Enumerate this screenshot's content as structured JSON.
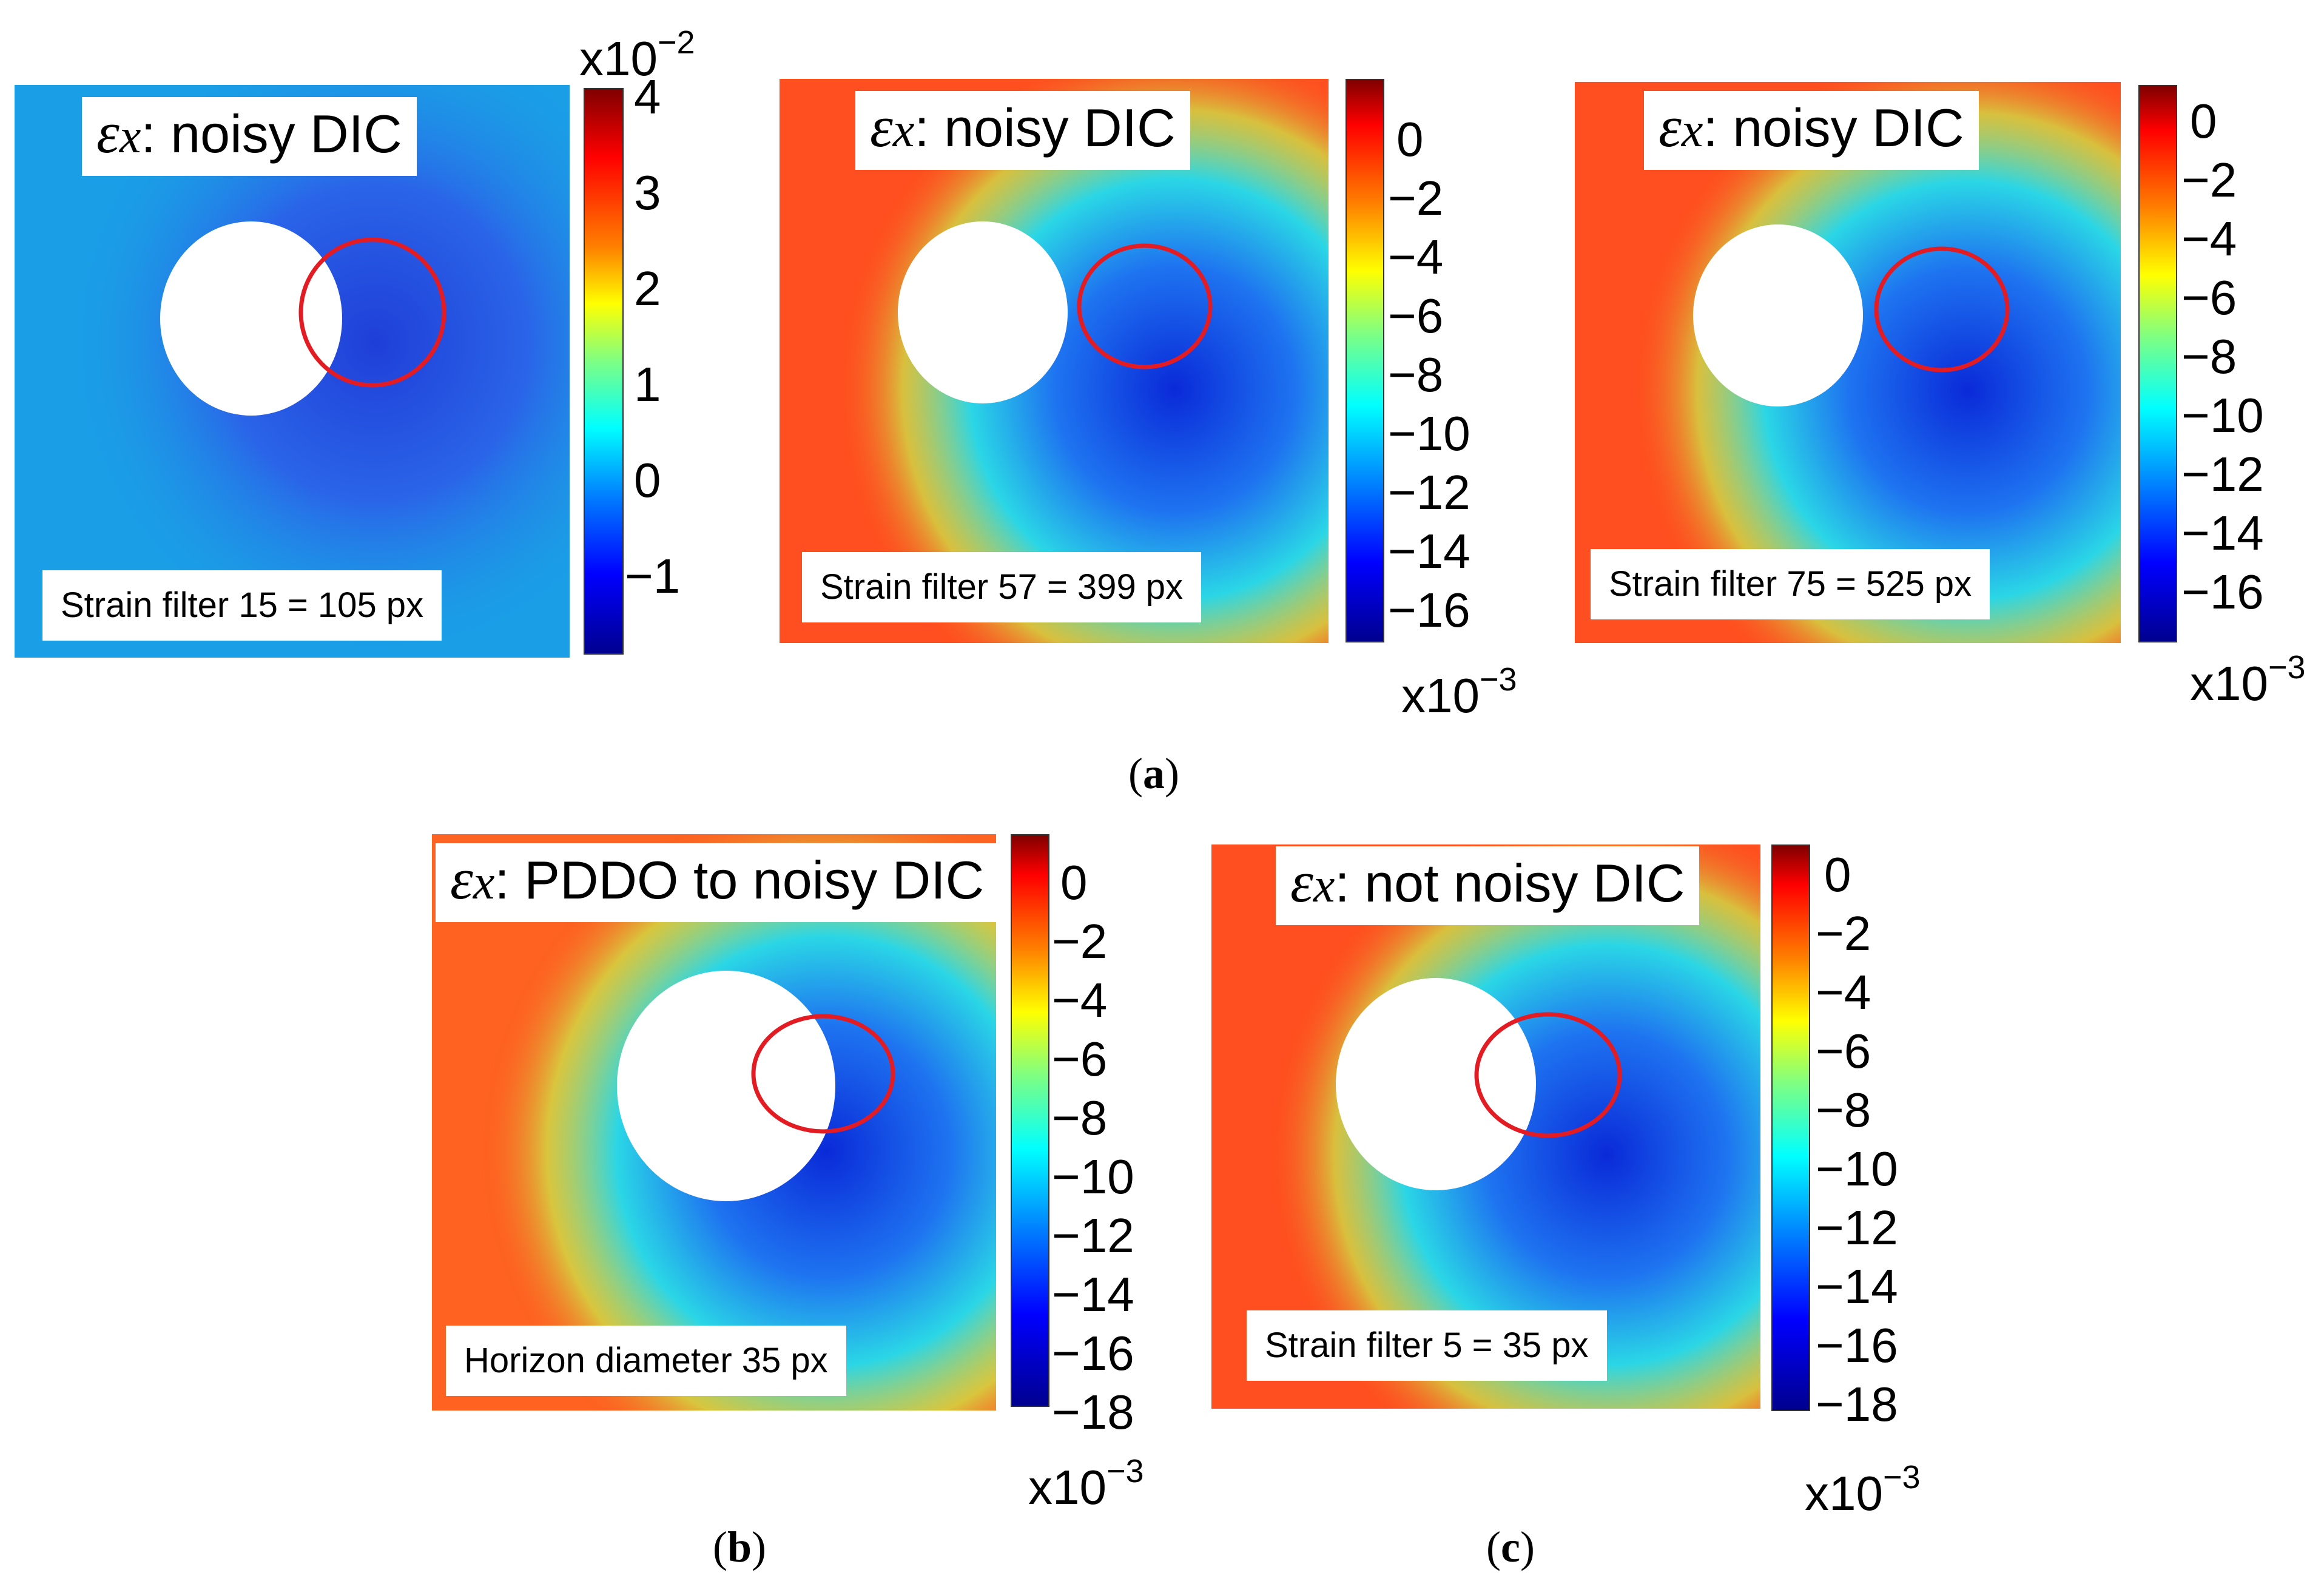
{
  "figure": {
    "subfigure_labels": [
      {
        "open": "(",
        "letter": "a",
        "close": ")"
      },
      {
        "open": "(",
        "letter": "b",
        "close": ")"
      },
      {
        "open": "(",
        "letter": "c",
        "close": ")"
      }
    ],
    "panels": [
      {
        "title_symbol": "εx",
        "title_text": ": noisy DIC",
        "label": "Strain filter 15 = 105 px",
        "colorbar": {
          "ticks": [
            "4",
            "3",
            "2",
            "1",
            "0",
            "−1"
          ],
          "multiplier_base": "x10",
          "multiplier_exp": "−2",
          "multiplier_position": "top",
          "range": [
            -1.8,
            4.2
          ]
        },
        "map_style": "blue"
      },
      {
        "title_symbol": "εx",
        "title_text": ": noisy DIC",
        "label": "Strain filter 57 = 399 px",
        "colorbar": {
          "ticks": [
            "0",
            "−2",
            "−4",
            "−6",
            "−8",
            "−10",
            "−12",
            "−14",
            "−16"
          ],
          "multiplier_base": "x10",
          "multiplier_exp": "−3",
          "multiplier_position": "bottom",
          "range": [
            -17,
            1.3
          ]
        },
        "map_style": "strain"
      },
      {
        "title_symbol": "εx",
        "title_text": ": noisy DIC",
        "label": "Strain filter 75 = 525 px",
        "colorbar": {
          "ticks": [
            "0",
            "−2",
            "−4",
            "−6",
            "−8",
            "−10",
            "−12",
            "−14",
            "−16"
          ],
          "multiplier_base": "x10",
          "multiplier_exp": "−3",
          "multiplier_position": "bottom",
          "range": [
            -17,
            1.3
          ]
        },
        "map_style": "strain"
      },
      {
        "title_symbol": "εx",
        "title_text": ": PDDO to noisy DIC",
        "label": "Horizon diameter 35 px",
        "colorbar": {
          "ticks": [
            "0",
            "−2",
            "−4",
            "−6",
            "−8",
            "−10",
            "−12",
            "−14",
            "−16",
            "−18"
          ],
          "multiplier_base": "x10",
          "multiplier_exp": "−3",
          "multiplier_position": "bottom",
          "range": [
            -18.8,
            1.3
          ]
        },
        "map_style": "strain"
      },
      {
        "title_symbol": "εx",
        "title_text": ": not noisy DIC",
        "label": "Strain filter 5 = 35 px",
        "colorbar": {
          "ticks": [
            "0",
            "−2",
            "−4",
            "−6",
            "−8",
            "−10",
            "−12",
            "−14",
            "−16",
            "−18"
          ],
          "multiplier_base": "x10",
          "multiplier_exp": "−3",
          "multiplier_position": "bottom",
          "range": [
            -18.8,
            1.3
          ]
        },
        "map_style": "strain"
      }
    ],
    "colors": {
      "jet": [
        "#00008f",
        "#0000ff",
        "#0080ff",
        "#00ffff",
        "#80ff80",
        "#ffff00",
        "#ff8000",
        "#ff0000",
        "#800000"
      ],
      "highlight_circle": "#e31b23"
    }
  }
}
